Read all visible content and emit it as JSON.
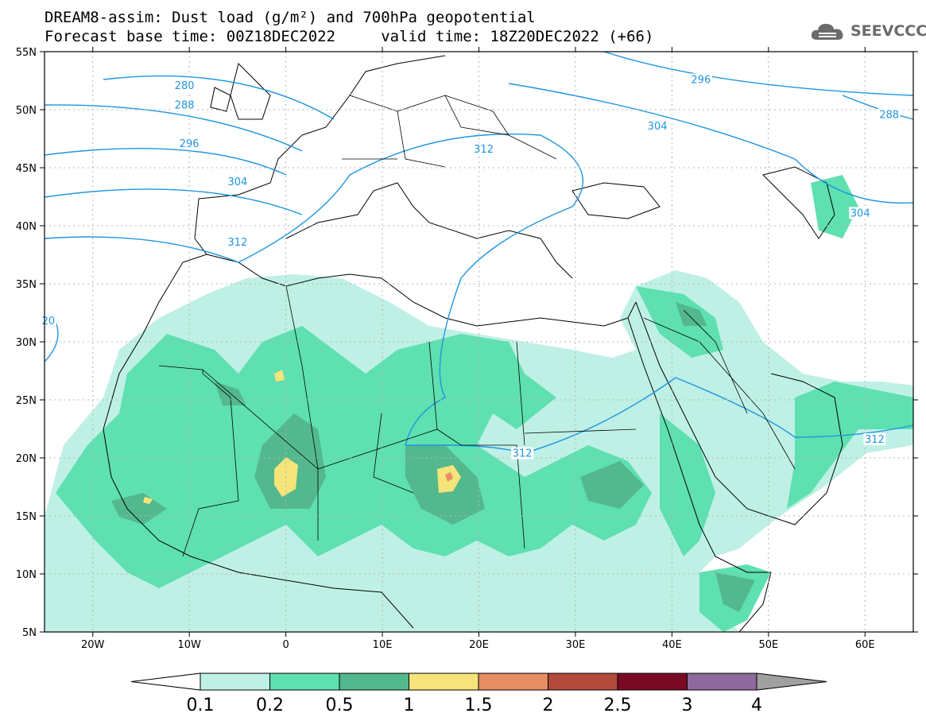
{
  "title": {
    "line1": "DREAM8-assim: Dust load (g/m²) and 700hPa geopotential",
    "line2": "Forecast base time: 00Z18DEC2022     valid time: 18Z20DEC2022 (+66)"
  },
  "logo": {
    "text": "SEEVCCC",
    "icon": "cloud-icon"
  },
  "map": {
    "lon_range": [
      -25,
      65
    ],
    "lat_range": [
      5,
      55
    ],
    "lon_ticks": [
      {
        "v": -20,
        "label": "20W"
      },
      {
        "v": -10,
        "label": "10W"
      },
      {
        "v": 0,
        "label": "0"
      },
      {
        "v": 10,
        "label": "10E"
      },
      {
        "v": 20,
        "label": "20E"
      },
      {
        "v": 30,
        "label": "30E"
      },
      {
        "v": 40,
        "label": "40E"
      },
      {
        "v": 50,
        "label": "50E"
      },
      {
        "v": 60,
        "label": "60E"
      }
    ],
    "lat_ticks": [
      {
        "v": 55,
        "label": "55N"
      },
      {
        "v": 50,
        "label": "50N"
      },
      {
        "v": 45,
        "label": "45N"
      },
      {
        "v": 40,
        "label": "40N"
      },
      {
        "v": 35,
        "label": "35N"
      },
      {
        "v": 30,
        "label": "30N"
      },
      {
        "v": 25,
        "label": "25N"
      },
      {
        "v": 20,
        "label": "20N"
      },
      {
        "v": 15,
        "label": "15N"
      },
      {
        "v": 10,
        "label": "10N"
      },
      {
        "v": 5,
        "label": "5N"
      }
    ]
  },
  "colorbar": {
    "labels": [
      "0.1",
      "0.2",
      "0.5",
      "1",
      "1.5",
      "2",
      "2.5",
      "3",
      "4"
    ],
    "colors": [
      "#bff0e6",
      "#5ee0b0",
      "#53b88d",
      "#f5e47a",
      "#e58d64",
      "#b24a3c",
      "#7a0a24",
      "#8c6a9c",
      "#a0a0a0"
    ]
  },
  "contour_labels": {
    "items": [
      {
        "text": "280",
        "lon": -10.5,
        "lat": 52.0
      },
      {
        "text": "288",
        "lon": -10.5,
        "lat": 50.3
      },
      {
        "text": "296",
        "lon": -10.0,
        "lat": 47.0
      },
      {
        "text": "304",
        "lon": -5.0,
        "lat": 43.7
      },
      {
        "text": "312",
        "lon": -5.0,
        "lat": 38.5
      },
      {
        "text": "20",
        "lon": -24.6,
        "lat": 31.7
      },
      {
        "text": "312",
        "lon": 20.5,
        "lat": 46.5
      },
      {
        "text": "296",
        "lon": 43.0,
        "lat": 52.5
      },
      {
        "text": "304",
        "lon": 38.5,
        "lat": 48.5
      },
      {
        "text": "288",
        "lon": 62.5,
        "lat": 49.5
      },
      {
        "text": "304",
        "lon": 59.5,
        "lat": 41.0
      },
      {
        "text": "312",
        "lon": 61.0,
        "lat": 21.5
      },
      {
        "text": "312",
        "lon": 24.5,
        "lat": 20.3
      }
    ]
  }
}
